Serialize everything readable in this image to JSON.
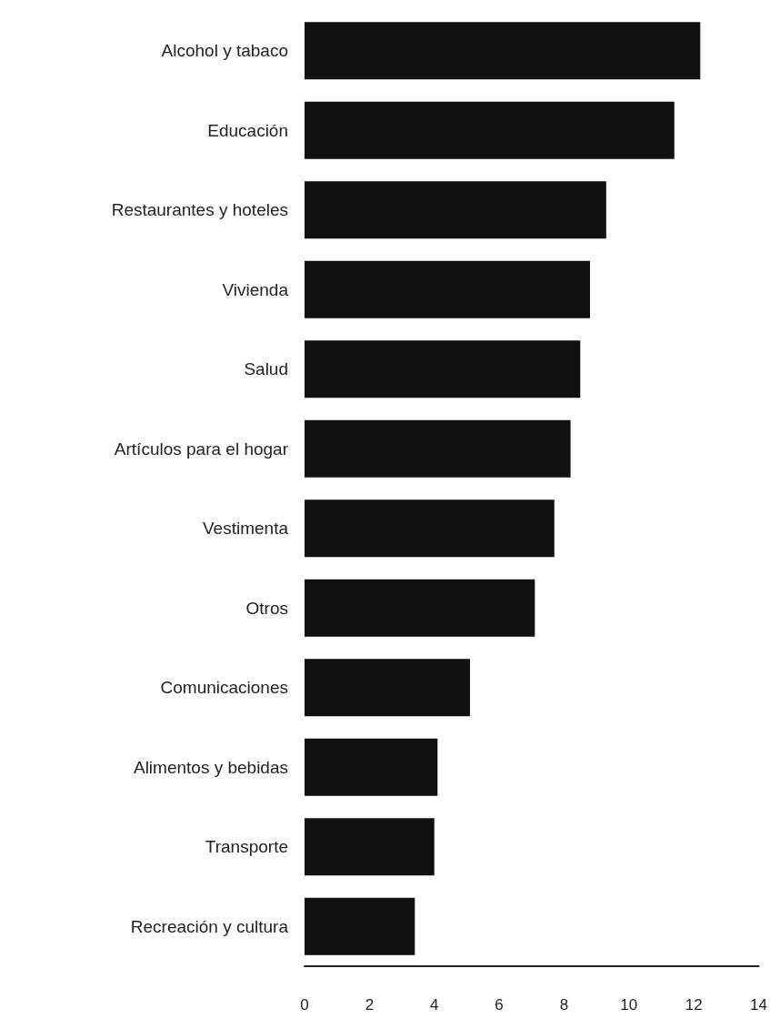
{
  "chart_data": {
    "type": "bar",
    "orientation": "horizontal",
    "categories": [
      "Alcohol y tabaco",
      "Educación",
      "Restaurantes y hoteles",
      "Vivienda",
      "Salud",
      "Artículos para el hogar",
      "Vestimenta",
      "Otros",
      "Comunicaciones",
      "Alimentos y bebidas",
      "Transporte",
      "Recreación y cultura"
    ],
    "values": [
      12.2,
      11.4,
      9.3,
      8.8,
      8.5,
      8.2,
      7.7,
      7.1,
      5.1,
      4.1,
      4.0,
      3.4
    ],
    "color": "#111111",
    "xlim": [
      0,
      14
    ],
    "xticks": [
      0,
      2,
      4,
      6,
      8,
      10,
      12,
      14
    ],
    "grid": false
  }
}
